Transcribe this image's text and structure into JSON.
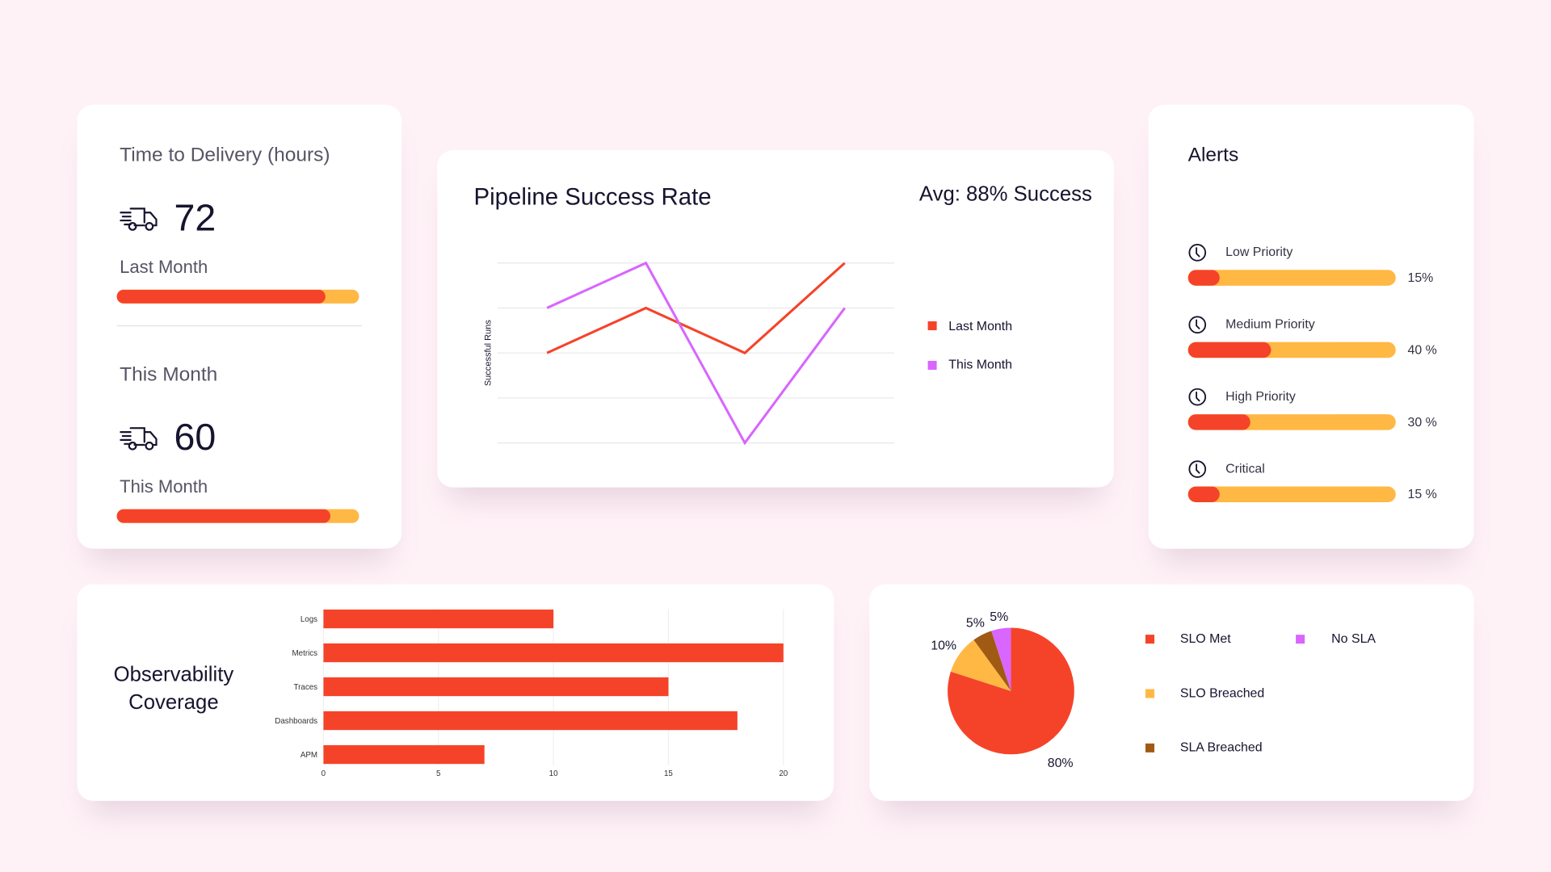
{
  "delivery": {
    "title": "Time to Delivery (hours)",
    "items": [
      {
        "value": "72",
        "label": "Last Month",
        "progress": 0.86
      },
      {
        "value": "60",
        "label": "This Month",
        "progress": 0.88
      }
    ]
  },
  "pipeline": {
    "title": "Pipeline Success Rate",
    "avg": "Avg: 88% Success",
    "chart_data": {
      "type": "line",
      "ylabel": "Successful Runs",
      "x": [
        1,
        2,
        3,
        4
      ],
      "ylim": [
        0,
        4
      ],
      "grid": true,
      "legend": "right",
      "series": [
        {
          "name": "Last Month",
          "color": "#f54329",
          "values": [
            2,
            3,
            2,
            4
          ]
        },
        {
          "name": "This Month",
          "color": "#d866ff",
          "values": [
            3,
            4,
            0,
            3
          ]
        }
      ]
    }
  },
  "alerts": {
    "title": "Alerts",
    "items": [
      {
        "label": "Low Priority",
        "percent": 15,
        "text": "15%"
      },
      {
        "label": "Medium Priority",
        "percent": 40,
        "text": "40 %"
      },
      {
        "label": "High Priority",
        "percent": 30,
        "text": "30 %"
      },
      {
        "label": "Critical",
        "percent": 15,
        "text": "15 %"
      }
    ]
  },
  "observability": {
    "title_line1": "Observability",
    "title_line2": "Coverage",
    "chart_data": {
      "type": "bar",
      "orientation": "horizontal",
      "categories": [
        "Logs",
        "Metrics",
        "Traces",
        "Dashboards",
        "APM"
      ],
      "values": [
        10,
        20,
        15,
        18,
        7
      ],
      "xlim": [
        0,
        20
      ],
      "xticks": [
        "0",
        "5",
        "10",
        "15",
        "20"
      ],
      "color": "#f54329"
    }
  },
  "sla": {
    "chart_data": {
      "type": "pie",
      "slices": [
        {
          "name": "SLO Met",
          "value": 80,
          "label": "80%",
          "color": "#f54329"
        },
        {
          "name": "SLO Breached",
          "value": 10,
          "label": "10%",
          "color": "#ffb844"
        },
        {
          "name": "SLA Breached",
          "value": 5,
          "label": "5%",
          "color": "#a05a14"
        },
        {
          "name": "No SLA",
          "value": 5,
          "label": "5%",
          "color": "#d866ff"
        }
      ]
    }
  }
}
